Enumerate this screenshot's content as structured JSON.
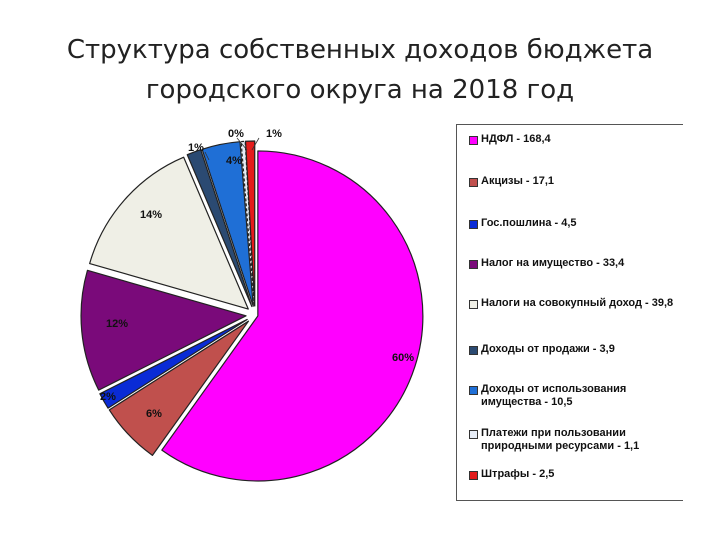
{
  "title": {
    "line1": "Структура собственных доходов бюджета",
    "line2": "городского округа на 2018 год"
  },
  "chart_data": {
    "type": "pie",
    "title": "Структура собственных доходов бюджета городского округа на 2018 год",
    "legend_position": "right",
    "slices": [
      {
        "label": "НДФЛ - 168,4",
        "value": 168.4,
        "pct_label": "60%",
        "color": "#ff00ff"
      },
      {
        "label": "Акцизы - 17,1",
        "value": 17.1,
        "pct_label": "6%",
        "color": "#c0504d"
      },
      {
        "label": "Гос.пошлина - 4,5",
        "value": 4.5,
        "pct_label": "2%",
        "color": "#0a2bd6"
      },
      {
        "label": "Налог на имущество - 33,4",
        "value": 33.4,
        "pct_label": "12%",
        "color": "#7a0a7a"
      },
      {
        "label": "Налоги на совокупный доход - 39,8",
        "value": 39.8,
        "pct_label": "14%",
        "color": "#efefe6"
      },
      {
        "label": "Доходы от продажи - 3,9",
        "value": 3.9,
        "pct_label": "1%",
        "color": "#2b4a72"
      },
      {
        "label": "Доходы от использования имущества - 10,5",
        "value": 10.5,
        "pct_label": "4%",
        "color": "#1f6fd6"
      },
      {
        "label": "Платежи при пользовании природными ресурсами - 1,1",
        "value": 1.1,
        "pct_label": "0%",
        "color": "#e6ecf6"
      },
      {
        "label": "Штрафы - 2,5",
        "value": 2.5,
        "pct_label": "1%",
        "color": "#e41c1c"
      }
    ]
  }
}
